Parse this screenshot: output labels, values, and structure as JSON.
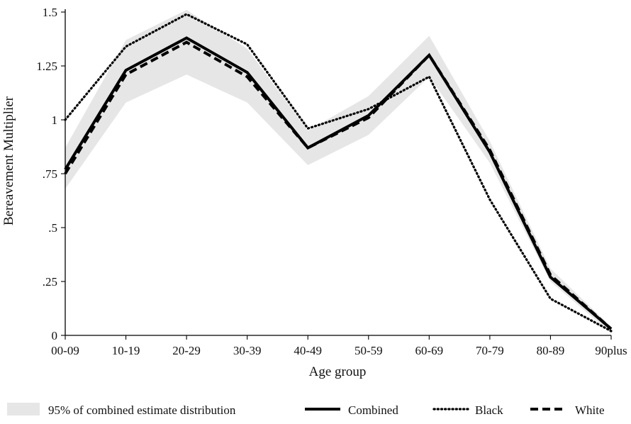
{
  "chart_data": {
    "type": "line",
    "x": [
      "00-09",
      "10-19",
      "20-29",
      "30-39",
      "40-49",
      "50-59",
      "60-69",
      "70-79",
      "80-89",
      "90plus"
    ],
    "y_ticks": [
      {
        "value": 0,
        "label": "0"
      },
      {
        "value": 0.25,
        "label": ".25"
      },
      {
        "value": 0.5,
        "label": ".5"
      },
      {
        "value": 0.75,
        "label": ".75"
      },
      {
        "value": 1,
        "label": "1"
      },
      {
        "value": 1.25,
        "label": "1.25"
      },
      {
        "value": 1.5,
        "label": "1.5"
      }
    ],
    "ylim": [
      0,
      1.5
    ],
    "xlabel": "Age group",
    "ylabel": "Bereavement Multiplier",
    "grid": false,
    "legend_position": "bottom",
    "band": {
      "name": "95% of combined estimate distribution",
      "color": "#e6e6e6",
      "lower": [
        0.68,
        1.08,
        1.21,
        1.08,
        0.79,
        0.93,
        1.2,
        0.8,
        0.25,
        0.01
      ],
      "upper": [
        0.87,
        1.37,
        1.51,
        1.33,
        0.95,
        1.11,
        1.39,
        0.9,
        0.31,
        0.04
      ]
    },
    "series": [
      {
        "name": "Combined",
        "style": "solid",
        "color": "#000000",
        "values": [
          0.77,
          1.23,
          1.38,
          1.22,
          0.87,
          1.02,
          1.3,
          0.85,
          0.27,
          0.03
        ]
      },
      {
        "name": "Black",
        "style": "dotted",
        "color": "#000000",
        "values": [
          1.0,
          1.34,
          1.49,
          1.35,
          0.96,
          1.05,
          1.2,
          0.63,
          0.17,
          0.02
        ]
      },
      {
        "name": "White",
        "style": "dashed",
        "color": "#000000",
        "values": [
          0.75,
          1.21,
          1.36,
          1.2,
          0.87,
          1.01,
          1.3,
          0.86,
          0.28,
          0.03
        ]
      }
    ]
  }
}
